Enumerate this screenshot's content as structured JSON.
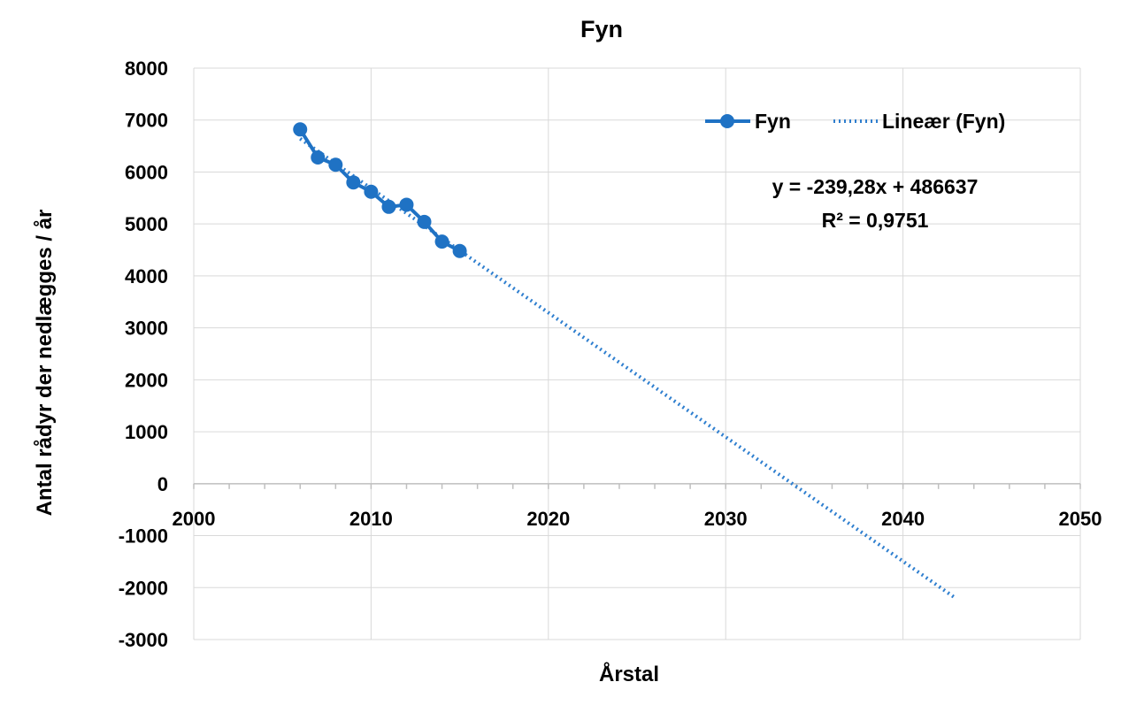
{
  "colors": {
    "series": "#1f72c4",
    "trend": "#2f7fcf",
    "grid": "#d9d9d9",
    "axis": "#bfbfbf"
  },
  "chart_data": {
    "type": "scatter",
    "title": "Fyn",
    "xlabel": "Årstal",
    "ylabel": "Antal rådyr der nedlægges / år",
    "xlim": [
      2000,
      2050
    ],
    "ylim": [
      -3000,
      8000
    ],
    "x_ticks": [
      2000,
      2010,
      2020,
      2030,
      2040,
      2050
    ],
    "y_ticks": [
      -3000,
      -2000,
      -1000,
      0,
      1000,
      2000,
      3000,
      4000,
      5000,
      6000,
      7000,
      8000
    ],
    "grid": true,
    "legend_position": "top-right",
    "series": [
      {
        "name": "Fyn",
        "style": "line-with-markers",
        "x": [
          2006,
          2007,
          2008,
          2009,
          2010,
          2011,
          2012,
          2013,
          2014,
          2015
        ],
        "y": [
          6820,
          6280,
          6140,
          5800,
          5620,
          5330,
          5370,
          5040,
          4660,
          4480
        ]
      }
    ],
    "trendline": {
      "name": "Lineær (Fyn)",
      "type": "linear",
      "slope": -239.28,
      "intercept": 486637,
      "x_range": [
        2006,
        2043
      ],
      "equation": "y = -239,28x + 486637",
      "r2": "R² = 0,9751"
    }
  }
}
